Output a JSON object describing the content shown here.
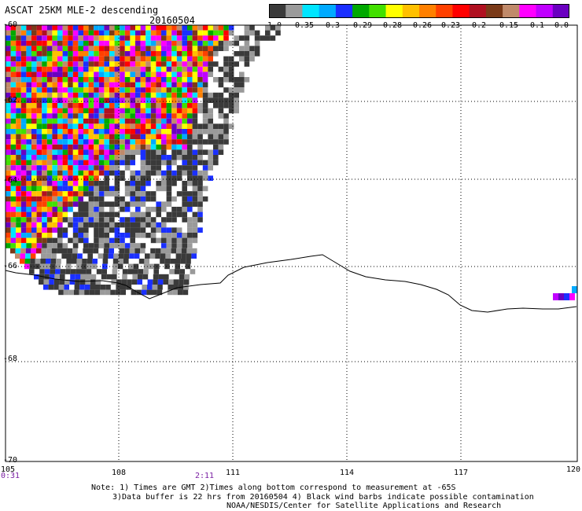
{
  "header": {
    "title": "ASCAT 25KM MLE-2 descending",
    "date": "20160504"
  },
  "colorbar": {
    "colors": [
      "#3a3a3a",
      "#9a9a9a",
      "#00e5ff",
      "#00aaff",
      "#1a2fff",
      "#00a800",
      "#42e000",
      "#ffff00",
      "#ffc000",
      "#ff8000",
      "#ff4000",
      "#ff0000",
      "#b01020",
      "#7a3a18",
      "#c08a6a",
      "#ff00ff",
      "#c000ff",
      "#6a00c0"
    ],
    "labels": [
      "-1.0",
      "-0.35",
      "-0.3",
      "-0.29",
      "-0.28",
      "-0.26",
      "-0.23",
      "-0.2",
      "-0.15",
      "-0.1",
      "0.0"
    ]
  },
  "map": {
    "lat_labels": [
      "-60",
      "-62",
      "-64",
      "-66",
      "-68",
      "-70"
    ],
    "lon_labels": [
      "105",
      "108",
      "111",
      "114",
      "117",
      "120"
    ],
    "lat_range": [
      -70,
      -60
    ],
    "lon_range": [
      105,
      120
    ],
    "grid": true
  },
  "times": [
    "0:31",
    "2:11"
  ],
  "footer": {
    "line1": "Note: 1) Times are GMT 2)Times along bottom correspond to measurement at -65S",
    "line2": "3)Data buffer is 22 hrs from 20160504 4) Black wind barbs indicate possible contamination",
    "line3": "NOAA/NESDIS/Center for Satellite Applications and Research"
  }
}
